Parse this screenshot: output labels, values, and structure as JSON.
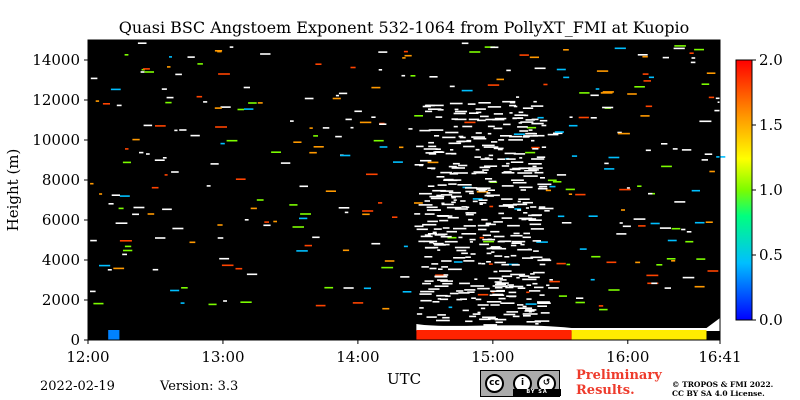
{
  "chart_data": {
    "type": "heatmap",
    "title": "Quasi BSC Angstoem Exponent 532-1064 from PollyXT_FMI at Kuopio",
    "xlabel": "UTC",
    "ylabel": "Height (m)",
    "xlim": [
      "12:00",
      "16:41"
    ],
    "x_ticks": [
      "12:00",
      "13:00",
      "14:00",
      "15:00",
      "16:00",
      "16:41"
    ],
    "ylim": [
      0,
      15000
    ],
    "y_ticks": [
      0,
      2000,
      4000,
      6000,
      8000,
      10000,
      12000,
      14000
    ],
    "colorbar": {
      "min": 0.0,
      "max": 2.0,
      "ticks": [
        "0.0",
        "0.5",
        "1.0",
        "1.5",
        "2.0"
      ]
    },
    "background": "#000000",
    "colors": {
      "low": "#0000ff",
      "mid": "#7cfc00",
      "high": "#ff0000",
      "noise": "#ffffff"
    },
    "features": [
      {
        "label": "",
        "start": "12:09",
        "end": "12:14",
        "height_bottom": 0,
        "height_top": 500,
        "value": 0.3
      },
      {
        "label": "",
        "start": "14:26",
        "end": "15:35",
        "height_bottom": 0,
        "height_top": 500,
        "value": 1.9
      },
      {
        "label": "",
        "start": "15:35",
        "end": "16:35",
        "height_bottom": 0,
        "height_top": 500,
        "value": 1.3
      }
    ]
  },
  "footer": {
    "date": "2022-02-19",
    "version": "Version: 3.3",
    "license_badge": {
      "icon": "cc-by-sa-icon",
      "text": "BY   SA"
    },
    "preliminary": [
      "Preliminary",
      "Results."
    ],
    "copyright": [
      "© TROPOS & FMI 2022.",
      "CC BY SA 4.0 License."
    ]
  }
}
